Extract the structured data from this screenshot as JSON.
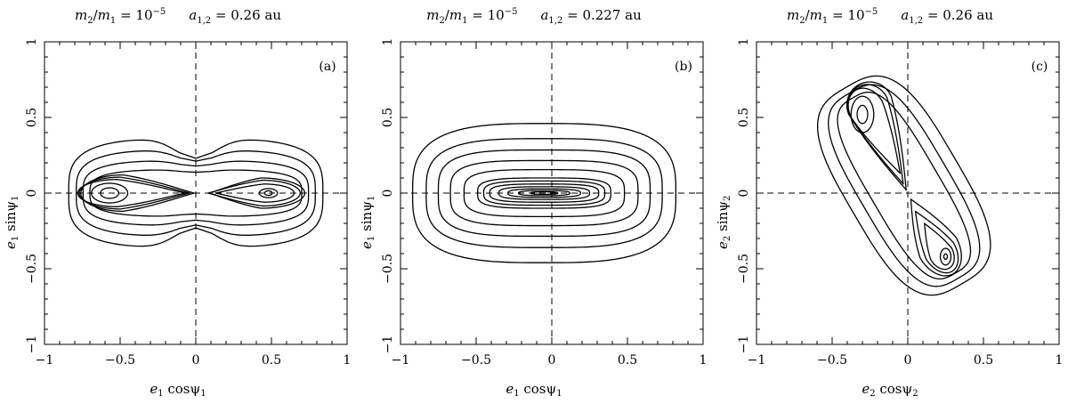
{
  "chart_data": [
    {
      "type": "line",
      "panel_label": "(a)",
      "title": {
        "ratio_lhs": "m",
        "ratio_lhs_sub": "2",
        "ratio_rhs": "m",
        "ratio_rhs_sub": "1",
        "ratio_eq": "= 10",
        "ratio_exp": "−5",
        "a_sym": "a",
        "a_sub": "1,2",
        "a_val": "= 0.26 au"
      },
      "xlabel": {
        "e": "e",
        "e_sub": "1",
        "fn": "cosψ",
        "fn_sub": "1"
      },
      "ylabel": {
        "e": "e",
        "e_sub": "1",
        "fn": "sinψ",
        "fn_sub": "1"
      },
      "xlim": [
        -1,
        1
      ],
      "ylim": [
        -1,
        1
      ],
      "xticks": [
        "−1",
        "−0.5",
        "0",
        "0.5",
        "1"
      ],
      "yticks": [
        "−1",
        "−0.5",
        "0",
        "0.5",
        "1"
      ],
      "reference_lines": {
        "x": 0,
        "y": 0,
        "style": "dashed"
      },
      "contours": [
        {
          "kind": "oval",
          "cx": -0.57,
          "cy": 0,
          "rx": 0.06,
          "ry": 0.035
        },
        {
          "kind": "oval",
          "cx": -0.57,
          "cy": 0,
          "rx": 0.12,
          "ry": 0.065
        },
        {
          "kind": "separatrix_lobe",
          "cx": -0.52,
          "rx": 0.26,
          "ry": 0.09,
          "cusp": -0.07
        },
        {
          "kind": "separatrix_lobe",
          "cx": -0.5,
          "rx": 0.27,
          "ry": 0.105,
          "cusp": -0.04
        },
        {
          "kind": "separatrix_lobe",
          "cx": -0.48,
          "rx": 0.28,
          "ry": 0.12,
          "cusp": -0.01
        },
        {
          "kind": "oval",
          "cx": 0.48,
          "cy": 0,
          "rx": 0.025,
          "ry": 0.015
        },
        {
          "kind": "oval",
          "cx": 0.48,
          "cy": 0,
          "rx": 0.06,
          "ry": 0.03
        },
        {
          "kind": "separatrix_lobe",
          "cx": 0.45,
          "rx": 0.2,
          "ry": 0.06,
          "cusp": 0.13
        },
        {
          "kind": "separatrix_lobe",
          "cx": 0.44,
          "rx": 0.25,
          "ry": 0.085,
          "cusp": 0.08
        },
        {
          "kind": "separatrix_lobe",
          "cx": 0.43,
          "rx": 0.29,
          "ry": 0.1,
          "cusp": 0.09
        },
        {
          "kind": "peanut",
          "hw": 0.7,
          "hh": 0.155,
          "waist": 0.11
        },
        {
          "kind": "peanut",
          "hw": 0.745,
          "hh": 0.215,
          "waist": 0.17
        },
        {
          "kind": "peanut",
          "hw": 0.79,
          "hh": 0.285,
          "waist": 0.26
        },
        {
          "kind": "peanut",
          "hw": 0.84,
          "hh": 0.36,
          "waist": 0.36
        }
      ]
    },
    {
      "type": "line",
      "panel_label": "(b)",
      "title": {
        "ratio_lhs": "m",
        "ratio_lhs_sub": "2",
        "ratio_rhs": "m",
        "ratio_rhs_sub": "1",
        "ratio_eq": "= 10",
        "ratio_exp": "−5",
        "a_sym": "a",
        "a_sub": "1,2",
        "a_val": "= 0.227 au"
      },
      "xlabel": {
        "e": "e",
        "e_sub": "1",
        "fn": "cosψ",
        "fn_sub": "1"
      },
      "ylabel": {
        "e": "e",
        "e_sub": "1",
        "fn": "sinψ",
        "fn_sub": "1"
      },
      "xlim": [
        -1,
        1
      ],
      "ylim": [
        -1,
        1
      ],
      "xticks": [
        "−1",
        "−0.5",
        "0",
        "0.5",
        "1"
      ],
      "yticks": [
        "−1",
        "−0.5",
        "0",
        "0.5",
        "1"
      ],
      "reference_lines": {
        "x": 0,
        "y": 0,
        "style": "dashed"
      },
      "contours": [
        {
          "kind": "superellipse",
          "cx": -0.05,
          "cy": 0,
          "a": 0.09,
          "b": 0.008,
          "n": 2.6
        },
        {
          "kind": "superellipse",
          "cx": -0.05,
          "cy": 0,
          "a": 0.17,
          "b": 0.017,
          "n": 2.6
        },
        {
          "kind": "superellipse",
          "cx": -0.05,
          "cy": 0,
          "a": 0.24,
          "b": 0.028,
          "n": 2.8
        },
        {
          "kind": "superellipse",
          "cx": -0.05,
          "cy": 0,
          "a": 0.3,
          "b": 0.042,
          "n": 3
        },
        {
          "kind": "superellipse",
          "cx": -0.05,
          "cy": 0,
          "a": 0.36,
          "b": 0.06,
          "n": 3.2
        },
        {
          "kind": "superellipse",
          "cx": -0.05,
          "cy": 0,
          "a": 0.4,
          "b": 0.08,
          "n": 3.4
        },
        {
          "kind": "superellipse",
          "cx": -0.05,
          "cy": 0,
          "a": 0.44,
          "b": 0.1,
          "n": 3.5
        },
        {
          "kind": "superellipse",
          "cx": -0.05,
          "cy": 0,
          "a": 0.53,
          "b": 0.155,
          "n": 3.6
        },
        {
          "kind": "superellipse",
          "cx": -0.05,
          "cy": 0,
          "a": 0.62,
          "b": 0.215,
          "n": 3.6
        },
        {
          "kind": "superellipse",
          "cx": -0.05,
          "cy": 0,
          "a": 0.7,
          "b": 0.285,
          "n": 3.5
        },
        {
          "kind": "superellipse",
          "cx": -0.05,
          "cy": 0,
          "a": 0.78,
          "b": 0.36,
          "n": 3.3
        },
        {
          "kind": "superellipse",
          "cx": -0.05,
          "cy": 0,
          "a": 0.87,
          "b": 0.46,
          "n": 3.1
        }
      ]
    },
    {
      "type": "line",
      "panel_label": "(c)",
      "title": {
        "ratio_lhs": "m",
        "ratio_lhs_sub": "2",
        "ratio_rhs": "m",
        "ratio_rhs_sub": "1",
        "ratio_eq": "= 10",
        "ratio_exp": "−5",
        "a_sym": "a",
        "a_sub": "1,2",
        "a_val": "= 0.26 au"
      },
      "xlabel": {
        "e": "e",
        "e_sub": "2",
        "fn": "cosψ",
        "fn_sub": "2"
      },
      "ylabel": {
        "e": "e",
        "e_sub": "2",
        "fn": "sinψ",
        "fn_sub": "2"
      },
      "xlim": [
        -1,
        1
      ],
      "ylim": [
        -1,
        1
      ],
      "xticks": [
        "−1",
        "−0.5",
        "0",
        "0.5",
        "1"
      ],
      "yticks": [
        "−1",
        "−0.5",
        "0",
        "0.5",
        "1"
      ],
      "reference_lines": {
        "x": 0,
        "y": 0,
        "style": "dashed"
      },
      "contours": [
        {
          "kind": "oval",
          "cx": -0.3,
          "cy": 0.52,
          "rx": 0.035,
          "ry": 0.06
        },
        {
          "kind": "oval",
          "cx": -0.3,
          "cy": 0.52,
          "rx": 0.075,
          "ry": 0.12
        },
        {
          "kind": "drop",
          "cx": -0.27,
          "cy": 0.55,
          "rx": 0.11,
          "ry": 0.15,
          "tx": -0.05,
          "ty": 0.13
        },
        {
          "kind": "drop",
          "cx": -0.26,
          "cy": 0.57,
          "rx": 0.13,
          "ry": 0.15,
          "tx": -0.03,
          "ty": 0.06
        },
        {
          "kind": "drop",
          "cx": -0.25,
          "cy": 0.58,
          "rx": 0.145,
          "ry": 0.155,
          "tx": -0.01,
          "ty": 0.02
        },
        {
          "kind": "oval",
          "cx": 0.25,
          "cy": -0.42,
          "rx": 0.012,
          "ry": 0.018
        },
        {
          "kind": "oval",
          "cx": 0.25,
          "cy": -0.42,
          "rx": 0.035,
          "ry": 0.055
        },
        {
          "kind": "drop",
          "cx": 0.22,
          "cy": -0.4,
          "rx": 0.075,
          "ry": 0.11,
          "tx": 0.11,
          "ty": -0.2
        },
        {
          "kind": "drop",
          "cx": 0.21,
          "cy": -0.38,
          "rx": 0.1,
          "ry": 0.16,
          "tx": 0.05,
          "ty": -0.12
        },
        {
          "kind": "drop",
          "cx": 0.2,
          "cy": -0.36,
          "rx": 0.13,
          "ry": 0.2,
          "tx": 0.02,
          "ty": -0.04
        },
        {
          "kind": "band",
          "w": 0.23,
          "cy": 0.09
        },
        {
          "kind": "band",
          "w": 0.3,
          "cy": 0.09
        },
        {
          "kind": "band",
          "w": 0.38,
          "cy": 0.09
        }
      ]
    }
  ]
}
